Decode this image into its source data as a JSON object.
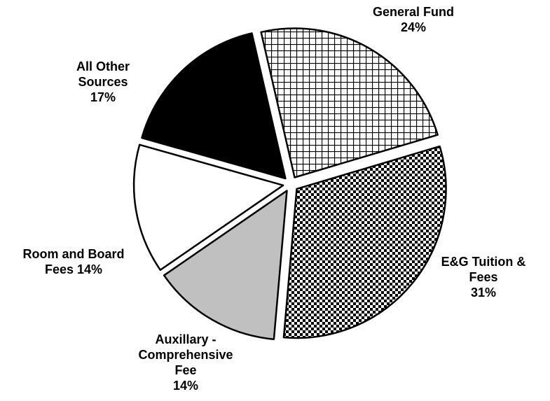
{
  "chart_data": {
    "type": "pie",
    "categories": [
      "General Fund",
      "E&G Tuition & Fees",
      "Auxillary - Comprehensive Fee",
      "Room and Board Fees",
      "All Other Sources"
    ],
    "values": [
      24,
      31,
      14,
      14,
      17
    ],
    "value_labels": [
      "24%",
      "31%",
      "14%",
      "14%",
      "17%"
    ],
    "colors": [
      "#ffffff",
      "#ffffff",
      "#c0c0c0",
      "#ffffff",
      "#000000"
    ],
    "patterns": [
      "grid",
      "checker",
      null,
      null,
      null
    ]
  }
}
